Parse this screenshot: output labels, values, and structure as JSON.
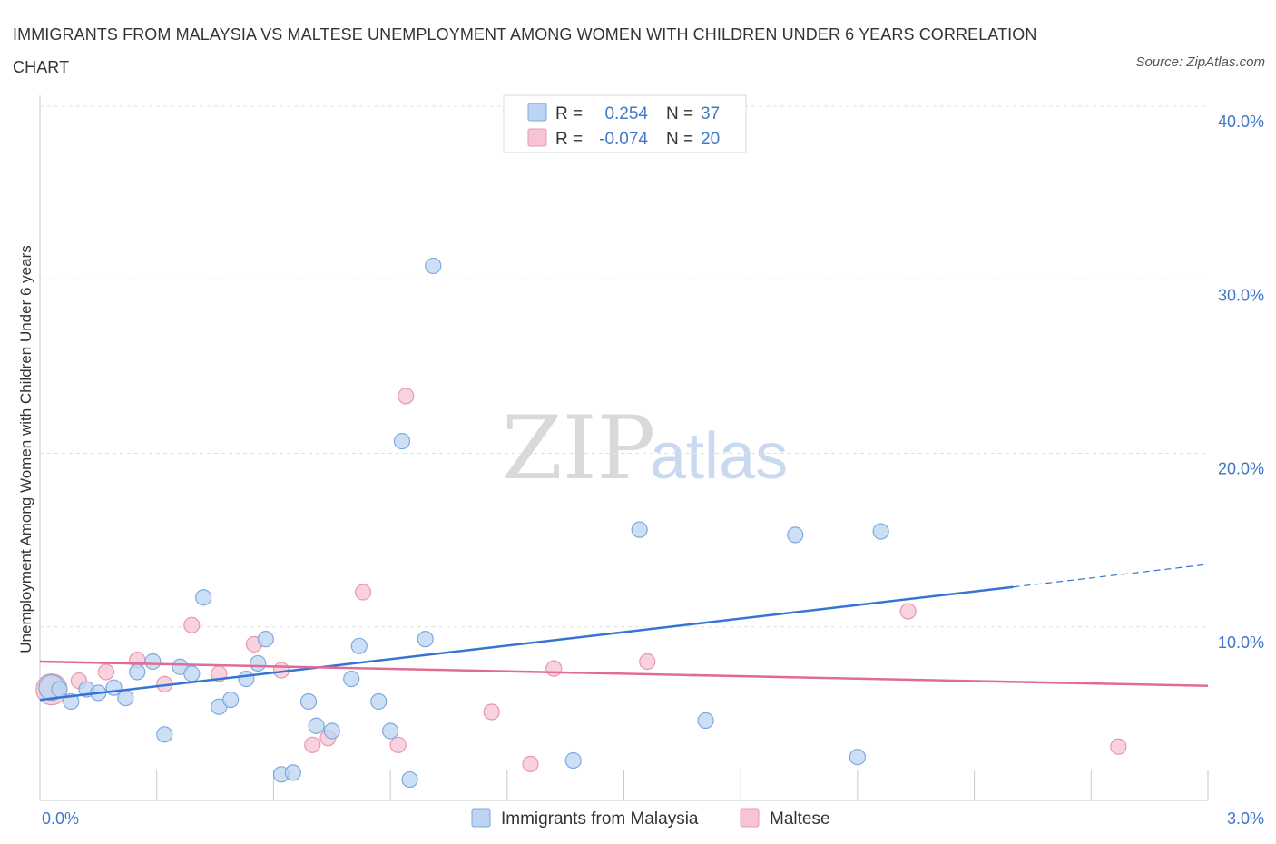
{
  "title": "IMMIGRANTS FROM MALAYSIA VS MALTESE UNEMPLOYMENT AMONG WOMEN WITH CHILDREN UNDER 6 YEARS CORRELATION CHART",
  "source": "Source: ZipAtlas.com",
  "watermark": {
    "zip": "ZIP",
    "atlas": "atlas"
  },
  "colors": {
    "blue_fill": "#bcd4f2",
    "blue_stroke": "#7ea9e0",
    "blue_line": "#3574d4",
    "pink_fill": "#f6c4d3",
    "pink_stroke": "#e897b0",
    "pink_line": "#e06c96",
    "grid": "#dde1e6",
    "tick_text": "#3f77c9"
  },
  "legend_top": {
    "rows": [
      {
        "r_label": "R =",
        "r_value": "0.254",
        "n_label": "N =",
        "n_value": "37"
      },
      {
        "r_label": "R =",
        "r_value": "-0.074",
        "n_label": "N =",
        "n_value": "20"
      }
    ]
  },
  "chart_data": {
    "type": "scatter",
    "title": "IMMIGRANTS FROM MALAYSIA VS MALTESE UNEMPLOYMENT AMONG WOMEN WITH CHILDREN UNDER 6 YEARS CORRELATION CHART",
    "xlabel": "",
    "ylabel": "Unemployment Among Women with Children Under 6 years",
    "xlim": [
      0,
      3.0
    ],
    "ylim": [
      0,
      40
    ],
    "x_tick_labels": [
      "0.0%",
      "3.0%"
    ],
    "y_ticks": [
      10,
      20,
      30,
      40
    ],
    "y_tick_labels": [
      "10.0%",
      "20.0%",
      "30.0%",
      "40.0%"
    ],
    "grid": true,
    "legend_position": "bottom",
    "series": [
      {
        "name": "Immigrants from Malaysia",
        "color": "#bcd4f2",
        "r": "0.254",
        "n": "37",
        "trend": {
          "x0": 0.0,
          "y0": 5.8,
          "x1": 2.5,
          "y1": 12.3,
          "dash_x1": 3.0,
          "dash_y1": 13.6
        },
        "points": [
          {
            "x": 0.03,
            "y": 6.5,
            "s": 2
          },
          {
            "x": 0.05,
            "y": 6.4,
            "s": 1
          },
          {
            "x": 0.08,
            "y": 5.7,
            "s": 1
          },
          {
            "x": 0.12,
            "y": 6.4,
            "s": 1
          },
          {
            "x": 0.15,
            "y": 6.2,
            "s": 1
          },
          {
            "x": 0.19,
            "y": 6.5,
            "s": 1
          },
          {
            "x": 0.22,
            "y": 5.9,
            "s": 1
          },
          {
            "x": 0.25,
            "y": 7.4,
            "s": 1
          },
          {
            "x": 0.29,
            "y": 8.0,
            "s": 1
          },
          {
            "x": 0.32,
            "y": 3.8,
            "s": 1
          },
          {
            "x": 0.36,
            "y": 7.7,
            "s": 1
          },
          {
            "x": 0.39,
            "y": 7.3,
            "s": 1
          },
          {
            "x": 0.42,
            "y": 11.7,
            "s": 1
          },
          {
            "x": 0.46,
            "y": 5.4,
            "s": 1
          },
          {
            "x": 0.49,
            "y": 5.8,
            "s": 1
          },
          {
            "x": 0.53,
            "y": 7.0,
            "s": 1
          },
          {
            "x": 0.56,
            "y": 7.9,
            "s": 1
          },
          {
            "x": 0.58,
            "y": 9.3,
            "s": 1
          },
          {
            "x": 0.62,
            "y": 1.5,
            "s": 1
          },
          {
            "x": 0.65,
            "y": 1.6,
            "s": 1
          },
          {
            "x": 0.69,
            "y": 5.7,
            "s": 1
          },
          {
            "x": 0.71,
            "y": 4.3,
            "s": 1
          },
          {
            "x": 0.75,
            "y": 4.0,
            "s": 1
          },
          {
            "x": 0.8,
            "y": 7.0,
            "s": 1
          },
          {
            "x": 0.82,
            "y": 8.9,
            "s": 1
          },
          {
            "x": 0.87,
            "y": 5.7,
            "s": 1
          },
          {
            "x": 0.9,
            "y": 4.0,
            "s": 1
          },
          {
            "x": 0.93,
            "y": 20.7,
            "s": 1
          },
          {
            "x": 0.95,
            "y": 1.2,
            "s": 1
          },
          {
            "x": 0.99,
            "y": 9.3,
            "s": 1
          },
          {
            "x": 1.01,
            "y": 30.8,
            "s": 1
          },
          {
            "x": 1.37,
            "y": 2.3,
            "s": 1
          },
          {
            "x": 1.54,
            "y": 15.6,
            "s": 1
          },
          {
            "x": 1.71,
            "y": 4.6,
            "s": 1
          },
          {
            "x": 1.94,
            "y": 15.3,
            "s": 1
          },
          {
            "x": 2.1,
            "y": 2.5,
            "s": 1
          },
          {
            "x": 2.16,
            "y": 15.5,
            "s": 1
          }
        ]
      },
      {
        "name": "Maltese",
        "color": "#f6c4d3",
        "r": "-0.074",
        "n": "20",
        "trend": {
          "x0": 0.0,
          "y0": 8.0,
          "x1": 3.0,
          "y1": 6.6
        },
        "points": [
          {
            "x": 0.03,
            "y": 6.4,
            "s": 3
          },
          {
            "x": 0.1,
            "y": 6.9,
            "s": 1
          },
          {
            "x": 0.17,
            "y": 7.4,
            "s": 1
          },
          {
            "x": 0.25,
            "y": 8.1,
            "s": 1
          },
          {
            "x": 0.32,
            "y": 6.7,
            "s": 1
          },
          {
            "x": 0.39,
            "y": 10.1,
            "s": 1
          },
          {
            "x": 0.46,
            "y": 7.3,
            "s": 1
          },
          {
            "x": 0.55,
            "y": 9.0,
            "s": 1
          },
          {
            "x": 0.62,
            "y": 7.5,
            "s": 1
          },
          {
            "x": 0.7,
            "y": 3.2,
            "s": 1
          },
          {
            "x": 0.74,
            "y": 3.6,
            "s": 1
          },
          {
            "x": 0.83,
            "y": 12.0,
            "s": 1
          },
          {
            "x": 0.92,
            "y": 3.2,
            "s": 1
          },
          {
            "x": 0.94,
            "y": 23.3,
            "s": 1
          },
          {
            "x": 1.16,
            "y": 5.1,
            "s": 1
          },
          {
            "x": 1.26,
            "y": 2.1,
            "s": 1
          },
          {
            "x": 1.32,
            "y": 7.6,
            "s": 1
          },
          {
            "x": 1.56,
            "y": 8.0,
            "s": 1
          },
          {
            "x": 2.23,
            "y": 10.9,
            "s": 1
          },
          {
            "x": 2.77,
            "y": 3.1,
            "s": 1
          }
        ]
      }
    ]
  }
}
